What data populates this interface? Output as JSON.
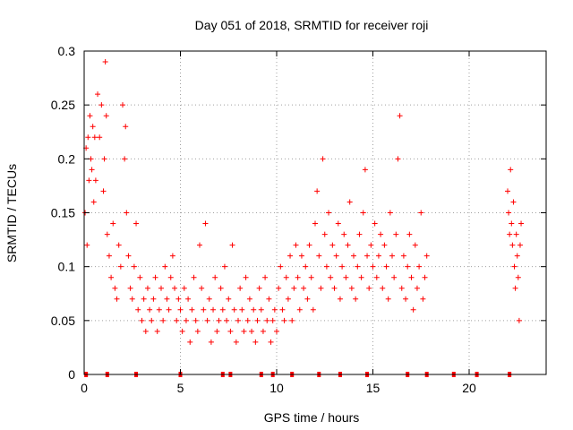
{
  "chart_data": {
    "type": "scatter",
    "title": "Day 051 of 2018, SRMTID for receiver roji",
    "xlabel": "GPS time / hours",
    "ylabel": "SRMTID / TECUs",
    "xlim": [
      0,
      24
    ],
    "ylim": [
      0,
      0.3
    ],
    "xticks": [
      0,
      5,
      10,
      15,
      20
    ],
    "yticks": [
      0,
      0.05,
      0.1,
      0.15,
      0.2,
      0.25,
      0.3
    ],
    "xtick_labels": [
      "0",
      "5",
      "10",
      "15",
      "20"
    ],
    "ytick_labels": [
      "0",
      "0.05",
      "0.1",
      "0.15",
      "0.2",
      "0.25",
      "0.3"
    ],
    "grid": true,
    "marker": "+",
    "color": "#ff0000",
    "series": [
      {
        "name": "SRMTID",
        "x": [
          0.05,
          0.1,
          0.15,
          0.2,
          0.25,
          0.3,
          0.35,
          0.4,
          0.45,
          0.5,
          0.55,
          0.6,
          0.7,
          0.8,
          0.9,
          1.0,
          1.05,
          1.1,
          1.15,
          1.2,
          1.3,
          1.4,
          1.5,
          1.6,
          1.7,
          1.8,
          1.9,
          2.0,
          2.1,
          2.15,
          2.2,
          2.3,
          2.4,
          2.5,
          2.6,
          2.7,
          2.8,
          2.9,
          3.0,
          3.1,
          3.2,
          3.3,
          3.4,
          3.5,
          3.6,
          3.7,
          3.8,
          3.9,
          4.0,
          4.1,
          4.2,
          4.3,
          4.4,
          4.5,
          4.6,
          4.7,
          4.8,
          4.9,
          5.0,
          5.1,
          5.2,
          5.3,
          5.4,
          5.5,
          5.6,
          5.7,
          5.8,
          5.9,
          6.0,
          6.1,
          6.2,
          6.3,
          6.4,
          6.5,
          6.6,
          6.7,
          6.8,
          6.9,
          7.0,
          7.1,
          7.2,
          7.3,
          7.4,
          7.5,
          7.6,
          7.7,
          7.8,
          7.9,
          8.0,
          8.1,
          8.2,
          8.3,
          8.4,
          8.5,
          8.6,
          8.7,
          8.8,
          8.9,
          9.0,
          9.1,
          9.2,
          9.3,
          9.4,
          9.5,
          9.6,
          9.7,
          9.8,
          9.9,
          10.0,
          10.1,
          10.2,
          10.3,
          10.4,
          10.5,
          10.6,
          10.7,
          10.8,
          10.9,
          11.0,
          11.1,
          11.2,
          11.3,
          11.4,
          11.5,
          11.6,
          11.7,
          11.8,
          11.9,
          12.0,
          12.1,
          12.2,
          12.3,
          12.4,
          12.5,
          12.6,
          12.7,
          12.8,
          12.9,
          13.0,
          13.1,
          13.2,
          13.3,
          13.4,
          13.5,
          13.6,
          13.7,
          13.8,
          13.9,
          14.0,
          14.1,
          14.2,
          14.3,
          14.4,
          14.5,
          14.6,
          14.7,
          14.8,
          14.9,
          15.0,
          15.1,
          15.2,
          15.3,
          15.4,
          15.5,
          15.6,
          15.7,
          15.8,
          15.9,
          16.0,
          16.1,
          16.2,
          16.3,
          16.4,
          16.5,
          16.6,
          16.7,
          16.8,
          16.9,
          17.0,
          17.1,
          17.2,
          17.3,
          17.4,
          17.5,
          17.6,
          17.7,
          17.8,
          22.0,
          22.05,
          22.1,
          22.15,
          22.2,
          22.25,
          22.3,
          22.35,
          22.4,
          22.45,
          22.5,
          22.55,
          22.6,
          22.65,
          22.7
        ],
        "y": [
          0.15,
          0.21,
          0.12,
          0.22,
          0.18,
          0.24,
          0.2,
          0.19,
          0.23,
          0.16,
          0.22,
          0.18,
          0.26,
          0.22,
          0.25,
          0.17,
          0.2,
          0.29,
          0.24,
          0.13,
          0.11,
          0.09,
          0.14,
          0.08,
          0.07,
          0.12,
          0.1,
          0.25,
          0.2,
          0.23,
          0.15,
          0.11,
          0.08,
          0.07,
          0.1,
          0.14,
          0.06,
          0.09,
          0.05,
          0.07,
          0.04,
          0.08,
          0.06,
          0.05,
          0.07,
          0.09,
          0.04,
          0.06,
          0.08,
          0.05,
          0.1,
          0.07,
          0.06,
          0.09,
          0.11,
          0.08,
          0.05,
          0.07,
          0.06,
          0.04,
          0.08,
          0.05,
          0.07,
          0.03,
          0.06,
          0.09,
          0.05,
          0.04,
          0.12,
          0.08,
          0.06,
          0.14,
          0.05,
          0.07,
          0.03,
          0.06,
          0.09,
          0.04,
          0.05,
          0.08,
          0.06,
          0.1,
          0.05,
          0.07,
          0.04,
          0.12,
          0.06,
          0.03,
          0.05,
          0.08,
          0.06,
          0.04,
          0.09,
          0.05,
          0.07,
          0.04,
          0.06,
          0.03,
          0.05,
          0.08,
          0.06,
          0.04,
          0.09,
          0.05,
          0.07,
          0.03,
          0.05,
          0.06,
          0.04,
          0.08,
          0.1,
          0.06,
          0.05,
          0.09,
          0.07,
          0.11,
          0.05,
          0.08,
          0.12,
          0.09,
          0.06,
          0.11,
          0.08,
          0.1,
          0.07,
          0.12,
          0.09,
          0.06,
          0.14,
          0.17,
          0.11,
          0.08,
          0.2,
          0.13,
          0.1,
          0.15,
          0.09,
          0.12,
          0.08,
          0.11,
          0.14,
          0.07,
          0.1,
          0.13,
          0.09,
          0.12,
          0.16,
          0.08,
          0.11,
          0.07,
          0.1,
          0.13,
          0.09,
          0.15,
          0.19,
          0.11,
          0.08,
          0.12,
          0.1,
          0.14,
          0.09,
          0.11,
          0.13,
          0.08,
          0.12,
          0.1,
          0.07,
          0.15,
          0.11,
          0.09,
          0.13,
          0.2,
          0.24,
          0.08,
          0.11,
          0.07,
          0.1,
          0.13,
          0.09,
          0.06,
          0.12,
          0.08,
          0.1,
          0.15,
          0.07,
          0.09,
          0.11,
          0.17,
          0.15,
          0.13,
          0.19,
          0.14,
          0.12,
          0.16,
          0.1,
          0.08,
          0.13,
          0.11,
          0.09,
          0.05,
          0.12,
          0.14
        ]
      }
    ],
    "baseline_marker_x": [
      0.1,
      1.2,
      2.7,
      5.0,
      7.2,
      7.6,
      9.2,
      9.8,
      10.8,
      12.2,
      13.3,
      14.7,
      16.8,
      17.8,
      19.2,
      20.4,
      22.1
    ]
  }
}
